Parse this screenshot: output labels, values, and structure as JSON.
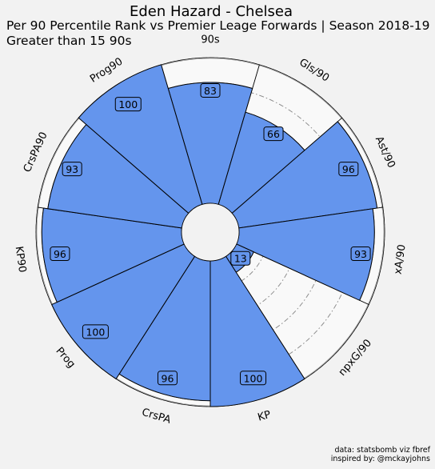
{
  "title": "Eden Hazard - Chelsea",
  "subtitle": "Per 90 Percentile Rank vs Premier Leage Forwards | Season 2018-19",
  "subtitle2": "Greater than 15 90s",
  "footer": {
    "line1": "data: statsbomb viz fbref",
    "line2": "inspired by: @mckayjohns"
  },
  "colors": {
    "background": "#f2f2f2",
    "bar_fill": "#6495ed",
    "bar_edge": "#000000",
    "grid": "#8c8c8c",
    "label_box": "#6495ed"
  },
  "chart_data": {
    "type": "polar-bar",
    "rlim": [
      0,
      100
    ],
    "grid": true,
    "grid_style": "dash-dot",
    "categories": [
      "90s",
      "Gls/90",
      "Ast/90",
      "xA/90",
      "npxG/90",
      "KP",
      "CrsPA",
      "Prog",
      "KP90",
      "CrsPA90",
      "Prog90"
    ],
    "values": [
      83,
      66,
      96,
      93,
      13,
      100,
      96,
      100,
      96,
      93,
      100
    ],
    "value_labels": [
      "83",
      "66",
      "96",
      "93",
      "13",
      "100",
      "96",
      "100",
      "96",
      "93",
      "100"
    ]
  }
}
